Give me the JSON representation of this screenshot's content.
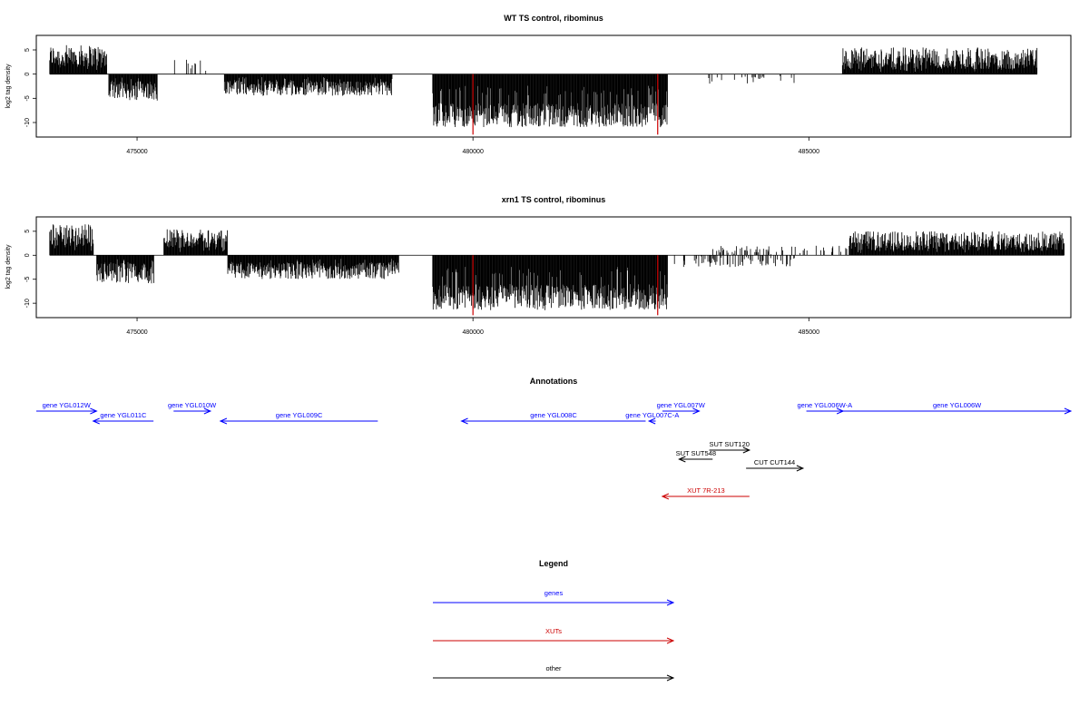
{
  "chart_data": [
    {
      "type": "bar",
      "title": "WT TS control, ribominus",
      "ylabel": "log2 tag density",
      "xlim": [
        473500,
        488900
      ],
      "ylim": [
        -13,
        8
      ],
      "yticks": [
        5,
        0,
        -5,
        -10
      ],
      "xticks": [
        475000,
        480000,
        485000
      ],
      "xtick_labels": [
        "475000",
        "480000",
        "485000"
      ],
      "bar_color": "#000000",
      "marker_color": "#cc0000",
      "red_markers": [
        480000,
        482750
      ],
      "red_marker_range": [
        -12.5,
        0
      ],
      "segments": [
        {
          "start": 473700,
          "end": 474550,
          "sign": 1,
          "min": 1.5,
          "max": 6.0
        },
        {
          "start": 474580,
          "end": 475300,
          "sign": -1,
          "min": 1.5,
          "max": 5.5
        },
        {
          "start": 475550,
          "end": 476100,
          "sign": 1,
          "min": 0.5,
          "max": 3.0,
          "density": 0.2
        },
        {
          "start": 476300,
          "end": 478800,
          "sign": -1,
          "min": 1.5,
          "max": 4.5
        },
        {
          "start": 479400,
          "end": 482900,
          "sign": -1,
          "min": 6.0,
          "max": 11.0
        },
        {
          "start": 483500,
          "end": 484800,
          "sign": -1,
          "min": 0.5,
          "max": 2.0,
          "density": 0.15
        },
        {
          "start": 485500,
          "end": 488400,
          "sign": 1,
          "min": 1.0,
          "max": 5.5
        }
      ]
    },
    {
      "type": "bar",
      "title": "xrn1 TS control, ribominus",
      "ylabel": "log2 tag density",
      "xlim": [
        473500,
        488900
      ],
      "ylim": [
        -13,
        8
      ],
      "yticks": [
        5,
        0,
        -5,
        -10
      ],
      "xticks": [
        475000,
        480000,
        485000
      ],
      "xtick_labels": [
        "475000",
        "480000",
        "485000"
      ],
      "bar_color": "#000000",
      "marker_color": "#cc0000",
      "red_markers": [
        480000,
        482750
      ],
      "red_marker_range": [
        -12.5,
        0
      ],
      "segments": [
        {
          "start": 473700,
          "end": 474350,
          "sign": 1,
          "min": 2.0,
          "max": 6.5
        },
        {
          "start": 474400,
          "end": 475250,
          "sign": -1,
          "min": 1.5,
          "max": 6.0
        },
        {
          "start": 475400,
          "end": 476350,
          "sign": 1,
          "min": 1.5,
          "max": 5.5
        },
        {
          "start": 476350,
          "end": 478900,
          "sign": -1,
          "min": 1.5,
          "max": 5.0
        },
        {
          "start": 479400,
          "end": 482900,
          "sign": -1,
          "min": 6.0,
          "max": 11.5
        },
        {
          "start": 483000,
          "end": 484800,
          "sign": -1,
          "min": 0.5,
          "max": 2.5,
          "density": 0.3
        },
        {
          "start": 483500,
          "end": 485600,
          "sign": 1,
          "min": 0.5,
          "max": 2.0,
          "density": 0.2
        },
        {
          "start": 485600,
          "end": 488800,
          "sign": 1,
          "min": 1.0,
          "max": 5.0
        }
      ]
    }
  ],
  "annotations": {
    "title": "Annotations",
    "items": [
      {
        "label": "gene YGL012W",
        "start": 473500,
        "end": 474400,
        "dir": 1,
        "row": 0,
        "color": "#0000ff"
      },
      {
        "label": "gene YGL011C",
        "start": 474350,
        "end": 475250,
        "dir": -1,
        "row": 1,
        "color": "#0000ff"
      },
      {
        "label": "gene YGL010W",
        "start": 475550,
        "end": 476100,
        "dir": 1,
        "row": 0,
        "color": "#0000ff"
      },
      {
        "label": "gene YGL009C",
        "start": 476250,
        "end": 478600,
        "dir": -1,
        "row": 1,
        "color": "#0000ff"
      },
      {
        "label": "gene YGL008C",
        "start": 479850,
        "end": 482600,
        "dir": -1,
        "row": 1,
        "color": "#0000ff"
      },
      {
        "label": "gene YGL007C-A",
        "start": 482650,
        "end": 482750,
        "dir": -1,
        "row": 1,
        "color": "#0000ff"
      },
      {
        "label": "gene YGL007W",
        "start": 482850,
        "end": 483400,
        "dir": 1,
        "row": 0,
        "color": "#0000ff"
      },
      {
        "label": "gene YGL006W-A",
        "start": 485000,
        "end": 485550,
        "dir": 1,
        "row": 0,
        "color": "#0000ff"
      },
      {
        "label": "gene YGL006W",
        "start": 485550,
        "end": 488950,
        "dir": 1,
        "row": 0,
        "color": "#0000ff"
      },
      {
        "label": "SUT SUT120",
        "start": 483550,
        "end": 484150,
        "dir": 1,
        "row": 2,
        "color": "#000000"
      },
      {
        "label": "SUT SUT548",
        "start": 483100,
        "end": 483600,
        "dir": -1,
        "row": 3,
        "color": "#000000"
      },
      {
        "label": "CUT CUT144",
        "start": 484100,
        "end": 484950,
        "dir": 1,
        "row": 4,
        "color": "#000000"
      },
      {
        "label": "XUT 7R-213",
        "start": 482850,
        "end": 484150,
        "dir": -1,
        "row": 6,
        "color": "#cc0000"
      }
    ]
  },
  "legend": {
    "title": "Legend",
    "items": [
      {
        "label": "genes",
        "color": "#0000ff"
      },
      {
        "label": "XUTs",
        "color": "#cc0000"
      },
      {
        "label": "other",
        "color": "#000000"
      }
    ]
  }
}
